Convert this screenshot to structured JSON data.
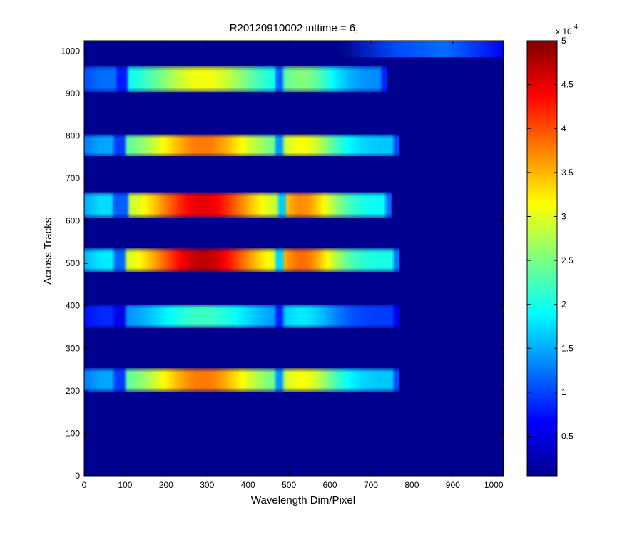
{
  "chart_data": {
    "type": "heatmap",
    "title": "R20120910002 inttime = 6,",
    "xlabel": "Wavelength Dim/Pixel",
    "ylabel": "Across Tracks",
    "xlim": [
      0,
      1024
    ],
    "ylim": [
      0,
      1024
    ],
    "x_ticks": [
      "0",
      "100",
      "200",
      "300",
      "400",
      "500",
      "600",
      "700",
      "800",
      "900",
      "1000"
    ],
    "y_ticks": [
      "0",
      "100",
      "200",
      "300",
      "400",
      "500",
      "600",
      "700",
      "800",
      "900",
      "1000"
    ],
    "colormap": "jet",
    "background_value": 500,
    "colorbar": {
      "min": 500,
      "max": 50000,
      "exponent_label": "x 10",
      "exponent": "4",
      "ticks": [
        "0.5",
        "1",
        "1.5",
        "2",
        "2.5",
        "3",
        "3.5",
        "4",
        "4.5",
        "5"
      ]
    },
    "bands": [
      {
        "y_range": [
          903,
          964
        ],
        "x_range": [
          0,
          740
        ],
        "peak_value": 31000
      },
      {
        "y_range": [
          752,
          803
        ],
        "x_range": [
          0,
          770
        ],
        "peak_value": 38000
      },
      {
        "y_range": [
          607,
          667
        ],
        "x_range": [
          0,
          750
        ],
        "peak_value": 45000
      },
      {
        "y_range": [
          480,
          535
        ],
        "x_range": [
          0,
          770
        ],
        "peak_value": 47000
      },
      {
        "y_range": [
          348,
          403
        ],
        "x_range": [
          0,
          770
        ],
        "peak_value": 22000
      },
      {
        "y_range": [
          198,
          253
        ],
        "x_range": [
          0,
          770
        ],
        "peak_value": 38000
      }
    ],
    "top_strip": {
      "y_range": [
        985,
        1024
      ],
      "x_range": [
        620,
        1024
      ],
      "peak_value": 12000
    }
  }
}
